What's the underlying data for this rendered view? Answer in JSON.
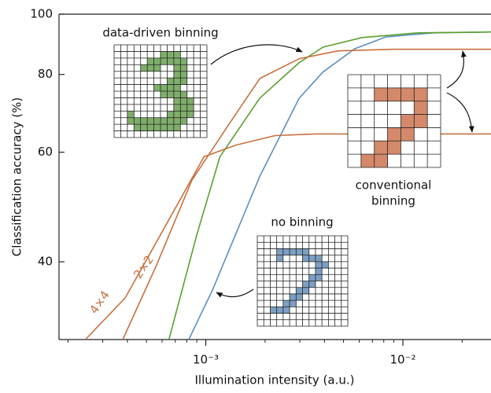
{
  "chart_data": {
    "type": "line",
    "xlabel": "Illumination intensity (a.u.)",
    "ylabel": "Classification accuracy (%)",
    "xscale": "log",
    "yscale": "log",
    "xlim": [
      0.00018,
      0.028
    ],
    "ylim": [
      30,
      100
    ],
    "xticks": [
      {
        "value": 0.001,
        "label": "10⁻³"
      },
      {
        "value": 0.01,
        "label": "10⁻²"
      }
    ],
    "xminorticks": [
      0.0002,
      0.0003,
      0.0004,
      0.0005,
      0.0006,
      0.0007,
      0.0008,
      0.0009,
      0.002,
      0.003,
      0.004,
      0.005,
      0.006,
      0.007,
      0.008,
      0.009,
      0.02
    ],
    "yticks": [
      40,
      60,
      80,
      100
    ],
    "annotations": [
      "conventional",
      "binning"
    ],
    "series": [
      {
        "name": "no binning",
        "color": "#5b8fbf",
        "x": [
          0.00082,
          0.00108,
          0.00188,
          0.00298,
          0.00393,
          0.0057,
          0.0082,
          0.0143,
          0.028
        ],
        "values": [
          30,
          36.0,
          54.9,
          73.3,
          80.7,
          88.0,
          91.9,
          93.3,
          93.6
        ]
      },
      {
        "name": "data-driven binning",
        "color": "#5aa02c",
        "x": [
          0.00065,
          0.0009,
          0.00118,
          0.00188,
          0.00298,
          0.00393,
          0.0062,
          0.0119,
          0.028
        ],
        "values": [
          30,
          44.2,
          59.0,
          73.3,
          83.6,
          88.5,
          91.7,
          93.3,
          93.6
        ]
      },
      {
        "name": "2×2",
        "color": "#c8703f",
        "x": [
          0.000379,
          0.00056,
          0.00085,
          0.0013,
          0.00188,
          0.00298,
          0.0047,
          0.009,
          0.028
        ],
        "values": [
          30,
          39.4,
          54.1,
          66.3,
          78.8,
          84.8,
          87.3,
          87.8,
          87.8
        ]
      },
      {
        "name": "4×4",
        "color": "#c8703f",
        "x": [
          0.000245,
          0.00039,
          0.00062,
          0.00098,
          0.00142,
          0.00225,
          0.0036,
          0.028
        ],
        "values": [
          30,
          35.0,
          45.5,
          59.0,
          61.6,
          63.8,
          64.2,
          64.2
        ]
      }
    ]
  }
}
